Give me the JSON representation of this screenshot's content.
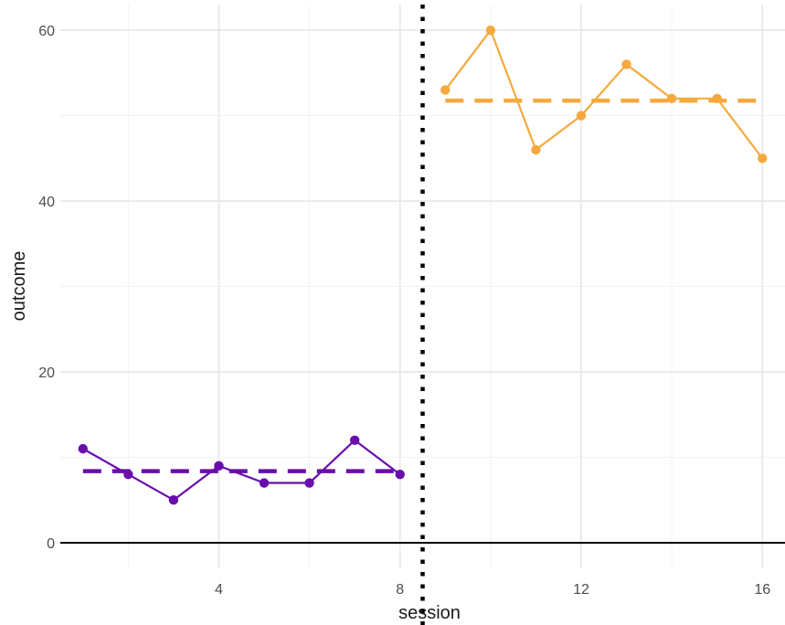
{
  "chart_data": {
    "type": "line",
    "title": "",
    "xlabel": "session",
    "ylabel": "outcome",
    "xlim": [
      0.5,
      16.5
    ],
    "ylim": [
      -3,
      63
    ],
    "x_ticks": [
      4,
      8,
      12,
      16
    ],
    "y_ticks": [
      0,
      20,
      40,
      60
    ],
    "x_minor_ticks": [
      2,
      6,
      10,
      14
    ],
    "y_minor_ticks": [
      10,
      30,
      50
    ],
    "grid": true,
    "phase_change_x": 8.5,
    "series": [
      {
        "color": "#6a0dad",
        "x": [
          1,
          2,
          3,
          4,
          5,
          6,
          7,
          8
        ],
        "y": [
          11,
          8,
          5,
          9,
          7,
          7,
          12,
          8
        ],
        "mean": 8.375
      },
      {
        "color": "#f5a93d",
        "x": [
          9,
          10,
          11,
          12,
          13,
          14,
          15,
          16
        ],
        "y": [
          53,
          60,
          46,
          50,
          56,
          52,
          52,
          45
        ],
        "mean": 51.75
      }
    ]
  }
}
